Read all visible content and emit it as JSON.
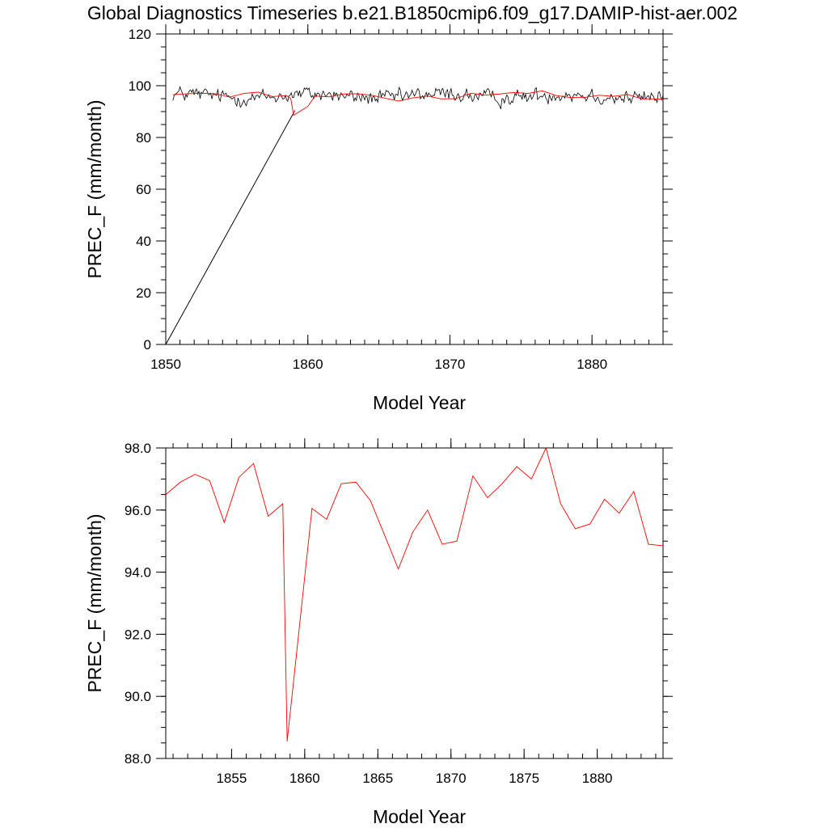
{
  "figure_title": "Global Diagnostics Timeseries b.e21.B1850cmip6.f09_g17.DAMIP-hist-aer.002",
  "chart_data": [
    {
      "type": "line",
      "title": "",
      "xlabel": "Model Year",
      "ylabel": "PREC_F (mm/month)",
      "xlim": [
        1850,
        1885
      ],
      "ylim": [
        0,
        120
      ],
      "xticks": [
        1850,
        1860,
        1870,
        1880
      ],
      "xtick_labels": [
        "1850",
        "1860",
        "1870",
        "1880"
      ],
      "yticks": [
        0,
        20,
        40,
        60,
        80,
        100,
        120
      ],
      "ytick_labels": [
        "0",
        "20",
        "40",
        "60",
        "80",
        "100",
        "120"
      ],
      "grid": false,
      "series": [
        {
          "color": "#000000",
          "segments": [
            [
              [
                1850.0,
                0.0
              ],
              [
                1859.0,
                89.5
              ]
            ],
            [
              [
                1850.0,
                0.0
              ],
              [
                1859.1,
                90.5
              ]
            ]
          ],
          "monthly": {
            "x_start": 1850.5,
            "x_end": 1885.0,
            "mean": 96.0,
            "std": 2.4,
            "min": 87.5,
            "max": 102.5
          }
        },
        {
          "color": "#ff0000",
          "points": [
            [
              1850.5,
              96.5
            ],
            [
              1851.5,
              96.9
            ],
            [
              1852.5,
              97.1
            ],
            [
              1853.5,
              96.9
            ],
            [
              1854.5,
              95.6
            ],
            [
              1855.5,
              97.0
            ],
            [
              1856.5,
              97.5
            ],
            [
              1857.5,
              95.8
            ],
            [
              1858.5,
              96.2
            ],
            [
              1858.8,
              95.0
            ],
            [
              1859.0,
              88.6
            ],
            [
              1860.0,
              92.0
            ],
            [
              1860.5,
              96.0
            ],
            [
              1861.5,
              95.7
            ],
            [
              1862.5,
              96.8
            ],
            [
              1863.5,
              96.9
            ],
            [
              1864.5,
              96.3
            ],
            [
              1865.5,
              95.1
            ],
            [
              1866.4,
              94.1
            ],
            [
              1867.4,
              95.3
            ],
            [
              1868.4,
              96.0
            ],
            [
              1869.4,
              94.9
            ],
            [
              1870.4,
              95.0
            ],
            [
              1871.5,
              97.1
            ],
            [
              1872.5,
              96.4
            ],
            [
              1873.5,
              96.8
            ],
            [
              1874.5,
              97.4
            ],
            [
              1875.5,
              97.0
            ],
            [
              1876.5,
              98.0
            ],
            [
              1877.5,
              96.2
            ],
            [
              1878.5,
              95.4
            ],
            [
              1879.5,
              95.5
            ],
            [
              1880.5,
              96.3
            ],
            [
              1881.5,
              95.9
            ],
            [
              1882.5,
              96.6
            ],
            [
              1883.5,
              94.9
            ],
            [
              1884.5,
              94.9
            ],
            [
              1885.0,
              94.8
            ]
          ]
        }
      ]
    },
    {
      "type": "line",
      "title": "",
      "xlabel": "Model Year",
      "ylabel": "PREC_F (mm/month)",
      "xlim": [
        1850.5,
        1884.5
      ],
      "ylim": [
        88.0,
        98.0
      ],
      "xticks": [
        1855,
        1860,
        1865,
        1870,
        1875,
        1880
      ],
      "xtick_labels": [
        "1855",
        "1860",
        "1865",
        "1870",
        "1875",
        "1880"
      ],
      "yticks": [
        88,
        90,
        92,
        94,
        96,
        98
      ],
      "ytick_labels": [
        "88.0",
        "90.0",
        "92.0",
        "94.0",
        "96.0",
        "98.0"
      ],
      "grid": false,
      "series": [
        {
          "color": "#ff0000",
          "points": [
            [
              1850.5,
              96.5
            ],
            [
              1851.5,
              96.9
            ],
            [
              1852.5,
              97.15
            ],
            [
              1853.5,
              96.95
            ],
            [
              1854.5,
              95.6
            ],
            [
              1855.5,
              97.05
            ],
            [
              1856.5,
              97.5
            ],
            [
              1857.5,
              95.8
            ],
            [
              1858.5,
              96.2
            ],
            [
              1858.8,
              88.55
            ],
            [
              1860.5,
              96.05
            ],
            [
              1861.5,
              95.7
            ],
            [
              1862.5,
              96.85
            ],
            [
              1863.5,
              96.9
            ],
            [
              1864.5,
              96.3
            ],
            [
              1865.5,
              95.15
            ],
            [
              1866.4,
              94.1
            ],
            [
              1867.4,
              95.3
            ],
            [
              1868.4,
              96.0
            ],
            [
              1869.4,
              94.9
            ],
            [
              1870.4,
              95.0
            ],
            [
              1871.5,
              97.1
            ],
            [
              1872.5,
              96.4
            ],
            [
              1873.5,
              96.85
            ],
            [
              1874.5,
              97.4
            ],
            [
              1875.5,
              97.0
            ],
            [
              1876.5,
              98.0
            ],
            [
              1877.5,
              96.2
            ],
            [
              1878.5,
              95.4
            ],
            [
              1879.5,
              95.55
            ],
            [
              1880.5,
              96.35
            ],
            [
              1881.5,
              95.9
            ],
            [
              1882.5,
              96.6
            ],
            [
              1883.5,
              94.9
            ],
            [
              1884.5,
              94.85
            ]
          ]
        }
      ]
    }
  ]
}
